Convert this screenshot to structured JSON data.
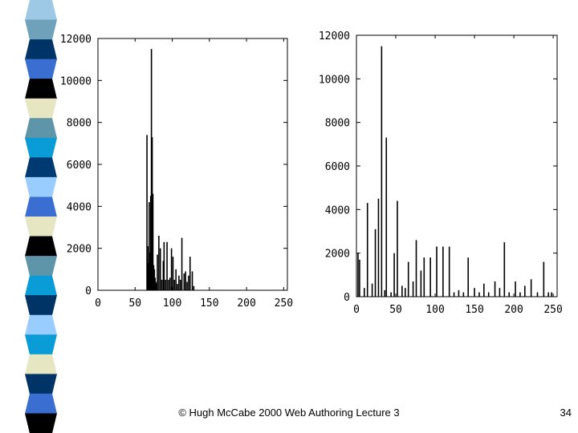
{
  "slide": {
    "footer": "© Hugh McCabe 2000 Web Authoring Lecture 3",
    "page_number": "34",
    "stripe_colors": [
      "#9ec9e6",
      "#6fa1ba",
      "#003366",
      "#3a6fd1",
      "#000000",
      "#e6e6c2",
      "#5f95a8",
      "#0a9cd6",
      "#003a73",
      "#99ccff",
      "#3a6fd1",
      "#e6e6c2",
      "#000000",
      "#5f95a8",
      "#0a9cd6",
      "#003366",
      "#99ccff",
      "#0a9cd6",
      "#e6e6c2",
      "#003366",
      "#3a6fd1",
      "#000000"
    ]
  },
  "chart_data": [
    {
      "type": "bar",
      "title": "",
      "xlabel": "",
      "ylabel": "",
      "xlim": [
        0,
        255
      ],
      "ylim": [
        0,
        12000
      ],
      "x_ticks": [
        "0",
        "50",
        "100",
        "150",
        "200",
        "250"
      ],
      "y_ticks": [
        "0",
        "2000",
        "4000",
        "6000",
        "8000",
        "10000",
        "12000"
      ],
      "x": [
        66,
        67,
        68,
        69,
        70,
        71,
        72,
        73,
        74,
        75,
        76,
        77,
        78,
        79,
        80,
        82,
        84,
        86,
        88,
        89,
        91,
        93,
        95,
        97,
        99,
        101,
        103,
        105,
        107,
        109,
        111,
        113,
        116,
        118,
        120,
        122,
        124,
        127,
        129
      ],
      "values": [
        7400,
        2100,
        1300,
        4200,
        1800,
        4500,
        11500,
        7300,
        4600,
        1200,
        1000,
        600,
        300,
        400,
        1700,
        2600,
        2000,
        500,
        1400,
        2300,
        500,
        2300,
        500,
        600,
        2000,
        1600,
        500,
        1000,
        300,
        700,
        500,
        2500,
        800,
        900,
        400,
        700,
        1600,
        900,
        200
      ]
    },
    {
      "type": "bar",
      "title": "",
      "xlabel": "",
      "ylabel": "",
      "xlim": [
        0,
        255
      ],
      "ylim": [
        0,
        12000
      ],
      "x_ticks": [
        "0",
        "50",
        "100",
        "150",
        "200",
        "250"
      ],
      "y_ticks": [
        "0",
        "2000",
        "4000",
        "6000",
        "8000",
        "10000",
        "12000"
      ],
      "x": [
        2,
        4,
        10,
        14,
        20,
        24,
        28,
        32,
        36,
        38,
        44,
        48,
        52,
        58,
        62,
        66,
        72,
        76,
        82,
        86,
        94,
        102,
        110,
        118,
        124,
        130,
        136,
        142,
        150,
        156,
        162,
        168,
        176,
        182,
        188,
        194,
        202,
        208,
        214,
        222,
        230,
        238,
        244,
        248
      ],
      "values": [
        2000,
        1700,
        400,
        4300,
        600,
        3100,
        4500,
        11500,
        300,
        7300,
        200,
        2000,
        4400,
        500,
        400,
        1600,
        700,
        2600,
        1200,
        1800,
        1800,
        2300,
        2300,
        2300,
        200,
        300,
        200,
        1800,
        400,
        200,
        600,
        200,
        700,
        400,
        2500,
        200,
        700,
        200,
        500,
        800,
        200,
        1600,
        200,
        200
      ]
    }
  ]
}
